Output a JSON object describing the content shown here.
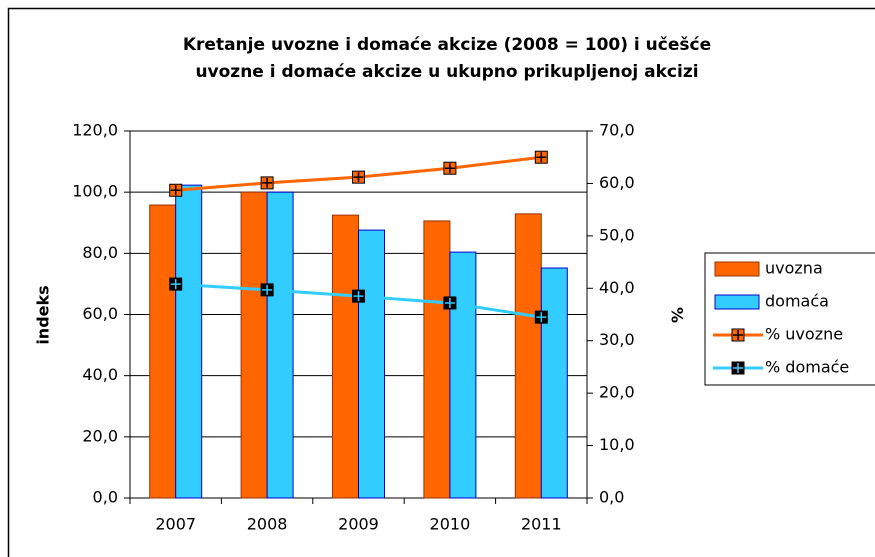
{
  "chart_data": {
    "type": "bar",
    "title": [
      "Kretanje uvozne i domaće akcize (2008 = 100) i učešće",
      "uvozne i domaće akcize u ukupno prikupljenoj akcizi"
    ],
    "ylabel": "indeks",
    "y2label": "%",
    "categories": [
      "2007",
      "2008",
      "2009",
      "2010",
      "2011"
    ],
    "series": [
      {
        "name": "uvozna",
        "type": "bar",
        "color": "#ff6600",
        "values": [
          95.8,
          100,
          92.5,
          90.6,
          92.9
        ]
      },
      {
        "name": "domaća",
        "type": "bar",
        "color": "#33ccff",
        "values": [
          102.3,
          100,
          87.6,
          80.4,
          75.2
        ]
      },
      {
        "name": "% uvozne",
        "type": "line",
        "axis": "y2",
        "color": "#ff6600",
        "values": [
          58.7,
          60.1,
          61.2,
          62.9,
          65.0
        ]
      },
      {
        "name": "% domaće",
        "type": "line",
        "axis": "y2",
        "color": "#33ccff",
        "values": [
          40.8,
          39.7,
          38.5,
          37.2,
          34.5
        ]
      }
    ],
    "ylim": [
      0,
      120
    ],
    "yticks": [
      {
        "value": 0,
        "label": "0,0"
      },
      {
        "value": 20,
        "label": "20,0"
      },
      {
        "value": 40,
        "label": "40,0"
      },
      {
        "value": 60,
        "label": "60,0"
      },
      {
        "value": 80,
        "label": "80,0"
      },
      {
        "value": 100,
        "label": "100,0"
      },
      {
        "value": 120,
        "label": "120,0"
      }
    ],
    "y2lim": [
      0,
      70
    ],
    "y2ticks": [
      {
        "value": 0,
        "label": "0,0"
      },
      {
        "value": 10,
        "label": "10,0"
      },
      {
        "value": 20,
        "label": "20,0"
      },
      {
        "value": 30,
        "label": "30,0"
      },
      {
        "value": 40,
        "label": "40,0"
      },
      {
        "value": 50,
        "label": "50,0"
      },
      {
        "value": 60,
        "label": "60,0"
      },
      {
        "value": 70,
        "label": "70,0"
      }
    ],
    "grid": true,
    "legend": "right"
  }
}
